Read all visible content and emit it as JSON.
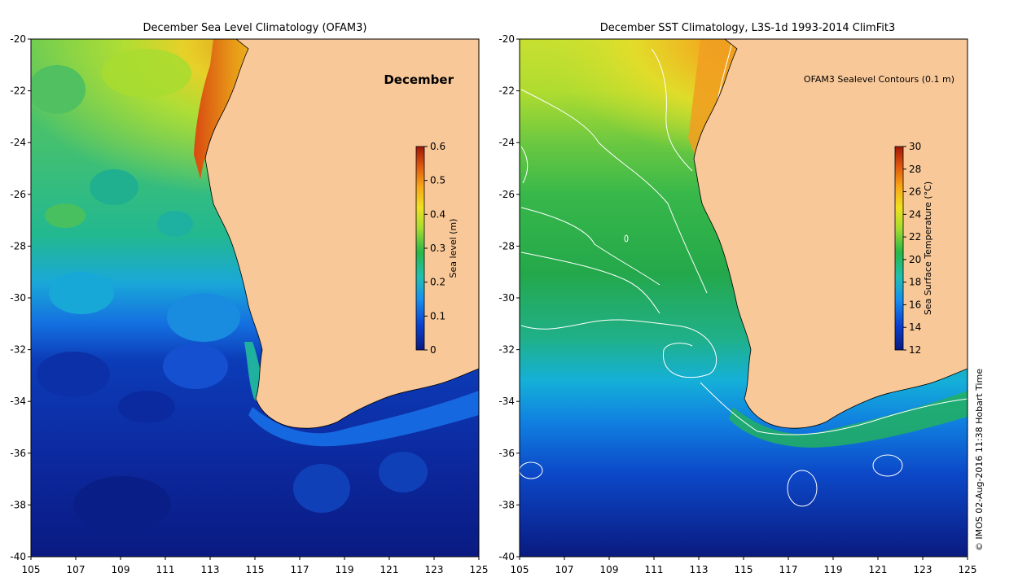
{
  "left_map": {
    "title": "December Sea Level Climatology (OFAM3)",
    "month_label": "December",
    "colorbar": {
      "label": "Sea level (m)",
      "range": [
        0,
        0.6
      ],
      "tick_labels": [
        "0",
        "0.1",
        "0.2",
        "0.3",
        "0.4",
        "0.5",
        "0.6"
      ],
      "colors": [
        "#0a1a80",
        "#0a3fd0",
        "#1690f0",
        "#20c0b0",
        "#28b848",
        "#a8dc30",
        "#f0e020",
        "#f8a818",
        "#e05a10",
        "#a01808"
      ]
    }
  },
  "right_map": {
    "title": "December SST Climatology, L3S-1d 1993-2014 ClimFit3",
    "contour_label": "OFAM3 Sealevel Contours (0.1 m)",
    "colorbar": {
      "label": "Sea Surface Temperature (°C)",
      "range": [
        12,
        30
      ],
      "tick_labels": [
        "12",
        "14",
        "16",
        "18",
        "20",
        "22",
        "24",
        "26",
        "28",
        "30"
      ],
      "colors": [
        "#0a1a80",
        "#0a3fd0",
        "#1690f0",
        "#20c0b0",
        "#28b848",
        "#a8dc30",
        "#f0e020",
        "#f8a818",
        "#e05a10",
        "#a01808"
      ]
    }
  },
  "axes": {
    "lon_ticks": [
      "105",
      "107",
      "109",
      "111",
      "113",
      "115",
      "117",
      "119",
      "121",
      "123",
      "125"
    ],
    "lat_ticks": [
      "-20",
      "-22",
      "-24",
      "-26",
      "-28",
      "-30",
      "-32",
      "-34",
      "-36",
      "-38",
      "-40"
    ],
    "lon_range": [
      105,
      125
    ],
    "lat_range": [
      -40,
      -20
    ]
  },
  "colors": {
    "land": "#f9c898",
    "coast": "#000000",
    "contour": "#ffffff"
  },
  "credit": "© IMOS 02-Aug-2016 11:38 Hobart Time"
}
